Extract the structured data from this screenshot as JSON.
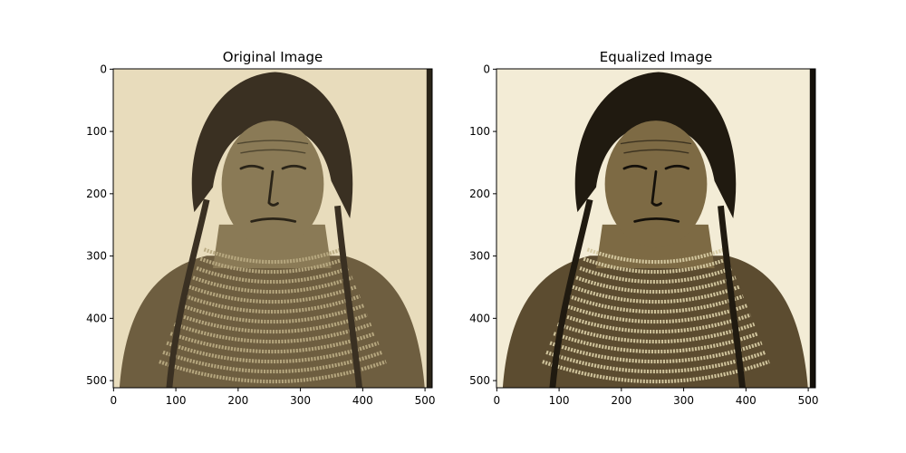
{
  "chart_data": [
    {
      "type": "image",
      "title": "Original Image",
      "xticks": [
        0,
        100,
        200,
        300,
        400,
        500
      ],
      "yticks": [
        0,
        100,
        200,
        300,
        400,
        500
      ],
      "xlim": [
        -0.5,
        511.5
      ],
      "ylim": [
        511.5,
        -0.5
      ],
      "tone": "original",
      "colors": {
        "background": "#e8dcbc",
        "face": "#8a7a56",
        "hair": "#3a3022",
        "shoulder": "#6e5e40",
        "beads": "#b8aa82",
        "shadow": "#2a2418"
      }
    },
    {
      "type": "image",
      "title": "Equalized Image",
      "xticks": [
        0,
        100,
        200,
        300,
        400,
        500
      ],
      "yticks": [
        0,
        100,
        200,
        300,
        400,
        500
      ],
      "xlim": [
        -0.5,
        511.5
      ],
      "ylim": [
        511.5,
        -0.5
      ],
      "tone": "equalized",
      "colors": {
        "background": "#f3ecd6",
        "face": "#7d6a44",
        "hair": "#201a10",
        "shoulder": "#5c4c30",
        "beads": "#d6caa2",
        "shadow": "#14100a"
      }
    }
  ]
}
